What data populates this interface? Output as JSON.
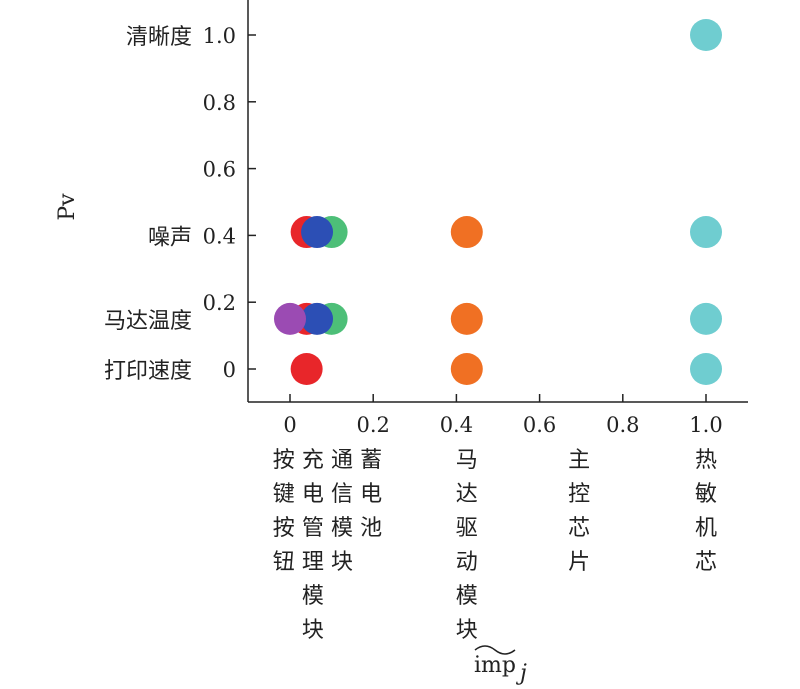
{
  "chart_data": {
    "type": "scatter",
    "xlabel": "imp",
    "xlabel_sub": "j",
    "ylabel": "Pv",
    "xlim": [
      -0.1,
      1.1
    ],
    "ylim": [
      -0.1,
      1.1
    ],
    "x_ticks": [
      0,
      0.2,
      0.4,
      0.6,
      0.8,
      1.0
    ],
    "x_tick_labels": [
      "0",
      "0.2",
      "0.4",
      "0.6",
      "0.8",
      "1.0"
    ],
    "y_ticks": [
      0,
      0.2,
      0.4,
      0.6,
      0.8,
      1.0
    ],
    "y_tick_labels": [
      "0",
      "0.2",
      "0.4",
      "0.6",
      "0.8",
      "1.0"
    ],
    "y_categories": [
      {
        "label": "清晰度",
        "y": 1.0
      },
      {
        "label": "噪声",
        "y": 0.4
      },
      {
        "label": "马达温度",
        "y": 0.15
      },
      {
        "label": "打印速度",
        "y": 0
      }
    ],
    "x_categories": [
      {
        "label": "按键按钮",
        "x": -0.015
      },
      {
        "label": "充电管理模块",
        "x": 0.055
      },
      {
        "label": "通信模块",
        "x": 0.125
      },
      {
        "label": "蓄电池",
        "x": 0.195
      },
      {
        "label": "马达驱动模块",
        "x": 0.425
      },
      {
        "label": "主控芯片",
        "x": 0.695
      },
      {
        "label": "热敏机芯",
        "x": 1.0
      }
    ],
    "series": [
      {
        "color": "#4dbf78",
        "points": [
          {
            "x": 0.1,
            "y": 0.41
          },
          {
            "x": 0.1,
            "y": 0.15
          }
        ]
      },
      {
        "color": "#e8262a",
        "points": [
          {
            "x": 0.04,
            "y": 0.41
          },
          {
            "x": 0.04,
            "y": 0.15
          },
          {
            "x": 0.04,
            "y": 0
          }
        ]
      },
      {
        "color": "#2c4fb5",
        "points": [
          {
            "x": 0.065,
            "y": 0.41
          },
          {
            "x": 0.065,
            "y": 0.15
          }
        ]
      },
      {
        "color": "#9b4bb3",
        "points": [
          {
            "x": 0.0,
            "y": 0.15
          }
        ]
      },
      {
        "color": "#f07023",
        "points": [
          {
            "x": 0.425,
            "y": 0.41
          },
          {
            "x": 0.425,
            "y": 0.15
          },
          {
            "x": 0.425,
            "y": 0
          }
        ]
      },
      {
        "color": "#6fcdd0",
        "points": [
          {
            "x": 1.0,
            "y": 1.0
          },
          {
            "x": 1.0,
            "y": 0.41
          },
          {
            "x": 1.0,
            "y": 0.15
          },
          {
            "x": 1.0,
            "y": 0
          }
        ]
      }
    ]
  }
}
